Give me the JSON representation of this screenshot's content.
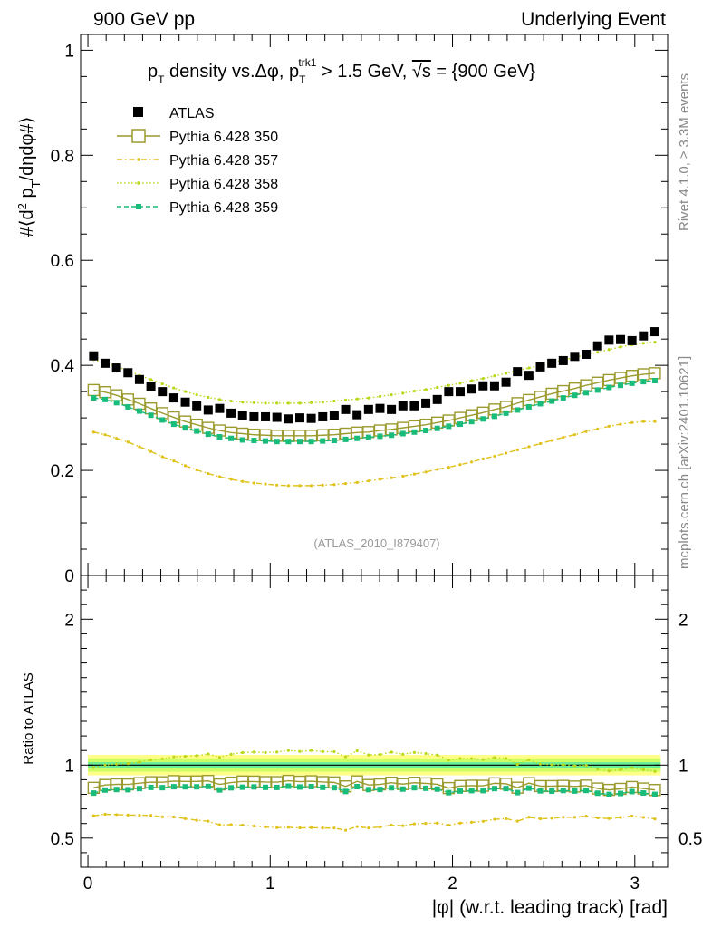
{
  "header": {
    "left": "900 GeV pp",
    "right": "Underlying Event"
  },
  "side": {
    "rivet": "Rivet 4.1.0, ≥ 3.3M events",
    "mcplots": "mcplots.cern.ch [arXiv:2401.10621]"
  },
  "chart_data": {
    "type": "scatter",
    "title": "p_T density vs.Δφ, p_T^trk1 > 1.5 GeV, √s = {900 GeV}",
    "title_parts": {
      "a": "p",
      "sub1": "T",
      "b": " density vs.Δφ, p",
      "sub2": "T",
      "sup2": "trk1",
      "c": " > 1.5 GeV, ",
      "sqrt": "√s",
      "d": " = {900 GeV}"
    },
    "watermark": "(ATLAS_2010_I879407)",
    "xlabel": "|φ| (w.r.t. leading track) [rad]",
    "ylabel": "#⟨d² p_T/dηdφ#⟩",
    "ylabel_parts": {
      "a": "#⟨d",
      "sup": "2",
      "b": " p",
      "sub": "T",
      "c": "/dηdφ#⟩"
    },
    "ratio_ylabel": "Ratio to ATLAS",
    "xlim": [
      -0.04,
      3.18
    ],
    "ylim": [
      0,
      1.03
    ],
    "ratio_ylim": [
      0.3,
      2.3
    ],
    "x_ticks": [
      "0",
      "1",
      "2",
      "3"
    ],
    "y_ticks": [
      "0",
      "0.2",
      "0.4",
      "0.6",
      "0.8",
      "1"
    ],
    "ratio_y_ticks": [
      "0.5",
      "1",
      "2"
    ],
    "x": [
      0.0314,
      0.0942,
      0.157,
      0.2199,
      0.2827,
      0.3456,
      0.4084,
      0.4712,
      0.5341,
      0.5969,
      0.6597,
      0.7226,
      0.7854,
      0.8482,
      0.9111,
      0.9739,
      1.0367,
      1.0996,
      1.1624,
      1.2252,
      1.2881,
      1.3509,
      1.4137,
      1.4765,
      1.5394,
      1.6022,
      1.665,
      1.7279,
      1.7907,
      1.8535,
      1.9164,
      1.9792,
      2.042,
      2.1049,
      2.1677,
      2.2305,
      2.2934,
      2.3562,
      2.419,
      2.4819,
      2.5447,
      2.6075,
      2.6704,
      2.7332,
      2.796,
      2.8588,
      2.9217,
      2.9845,
      3.0473,
      3.1102
    ],
    "series": [
      {
        "name": "ATLAS",
        "style": "square",
        "color": "#000000",
        "values": [
          0.418,
          0.404,
          0.395,
          0.386,
          0.373,
          0.36,
          0.35,
          0.338,
          0.33,
          0.323,
          0.315,
          0.318,
          0.309,
          0.304,
          0.302,
          0.302,
          0.301,
          0.298,
          0.3,
          0.299,
          0.302,
          0.304,
          0.316,
          0.306,
          0.316,
          0.318,
          0.316,
          0.323,
          0.323,
          0.328,
          0.335,
          0.35,
          0.35,
          0.355,
          0.361,
          0.361,
          0.368,
          0.388,
          0.381,
          0.397,
          0.404,
          0.409,
          0.417,
          0.421,
          0.437,
          0.448,
          0.449,
          0.447,
          0.456,
          0.464
        ]
      },
      {
        "name": "Pythia 6.428 350",
        "style": "open-square",
        "color": "#9a9a2e",
        "values": [
          0.353,
          0.349,
          0.343,
          0.335,
          0.327,
          0.318,
          0.309,
          0.301,
          0.293,
          0.287,
          0.281,
          0.276,
          0.272,
          0.27,
          0.268,
          0.267,
          0.266,
          0.266,
          0.266,
          0.266,
          0.267,
          0.268,
          0.27,
          0.272,
          0.273,
          0.276,
          0.278,
          0.281,
          0.284,
          0.287,
          0.291,
          0.295,
          0.3,
          0.305,
          0.31,
          0.316,
          0.321,
          0.328,
          0.334,
          0.34,
          0.346,
          0.351,
          0.356,
          0.362,
          0.367,
          0.372,
          0.376,
          0.38,
          0.383,
          0.385
        ]
      },
      {
        "name": "Pythia 6.428 357",
        "style": "dash-dot",
        "color": "#e0c21c",
        "values": [
          0.273,
          0.268,
          0.261,
          0.254,
          0.245,
          0.236,
          0.226,
          0.218,
          0.209,
          0.201,
          0.194,
          0.188,
          0.183,
          0.179,
          0.176,
          0.174,
          0.172,
          0.171,
          0.171,
          0.171,
          0.172,
          0.173,
          0.175,
          0.177,
          0.18,
          0.183,
          0.186,
          0.189,
          0.193,
          0.197,
          0.202,
          0.206,
          0.211,
          0.216,
          0.222,
          0.227,
          0.233,
          0.239,
          0.245,
          0.251,
          0.257,
          0.263,
          0.268,
          0.274,
          0.279,
          0.284,
          0.288,
          0.291,
          0.293,
          0.293
        ]
      },
      {
        "name": "Pythia 6.428 358",
        "style": "dotted",
        "color": "#bcd619",
        "values": [
          0.411,
          0.404,
          0.398,
          0.39,
          0.381,
          0.373,
          0.365,
          0.357,
          0.35,
          0.344,
          0.339,
          0.335,
          0.332,
          0.33,
          0.329,
          0.328,
          0.328,
          0.328,
          0.328,
          0.329,
          0.33,
          0.332,
          0.334,
          0.336,
          0.338,
          0.341,
          0.344,
          0.347,
          0.351,
          0.354,
          0.358,
          0.362,
          0.366,
          0.371,
          0.375,
          0.38,
          0.385,
          0.39,
          0.395,
          0.4,
          0.405,
          0.41,
          0.415,
          0.42,
          0.425,
          0.43,
          0.435,
          0.439,
          0.442,
          0.444
        ]
      },
      {
        "name": "Pythia 6.428 359",
        "style": "dashed",
        "color": "#1abc7c",
        "values": [
          0.338,
          0.335,
          0.329,
          0.321,
          0.313,
          0.305,
          0.296,
          0.288,
          0.281,
          0.275,
          0.269,
          0.264,
          0.261,
          0.258,
          0.257,
          0.256,
          0.255,
          0.255,
          0.255,
          0.255,
          0.256,
          0.257,
          0.259,
          0.261,
          0.263,
          0.265,
          0.267,
          0.27,
          0.273,
          0.276,
          0.28,
          0.284,
          0.288,
          0.293,
          0.298,
          0.303,
          0.309,
          0.315,
          0.321,
          0.327,
          0.332,
          0.338,
          0.343,
          0.348,
          0.353,
          0.358,
          0.362,
          0.366,
          0.369,
          0.371
        ]
      }
    ],
    "ratio_bands": [
      {
        "level": "outer",
        "lo": 0.93,
        "hi": 1.07,
        "color": "#ffff88"
      },
      {
        "level": "mid",
        "lo": 0.955,
        "hi": 1.045,
        "color": "#ccff66"
      },
      {
        "level": "inner",
        "lo": 0.98,
        "hi": 1.02,
        "color": "#66ee99"
      }
    ],
    "legend_position": "top-left"
  }
}
